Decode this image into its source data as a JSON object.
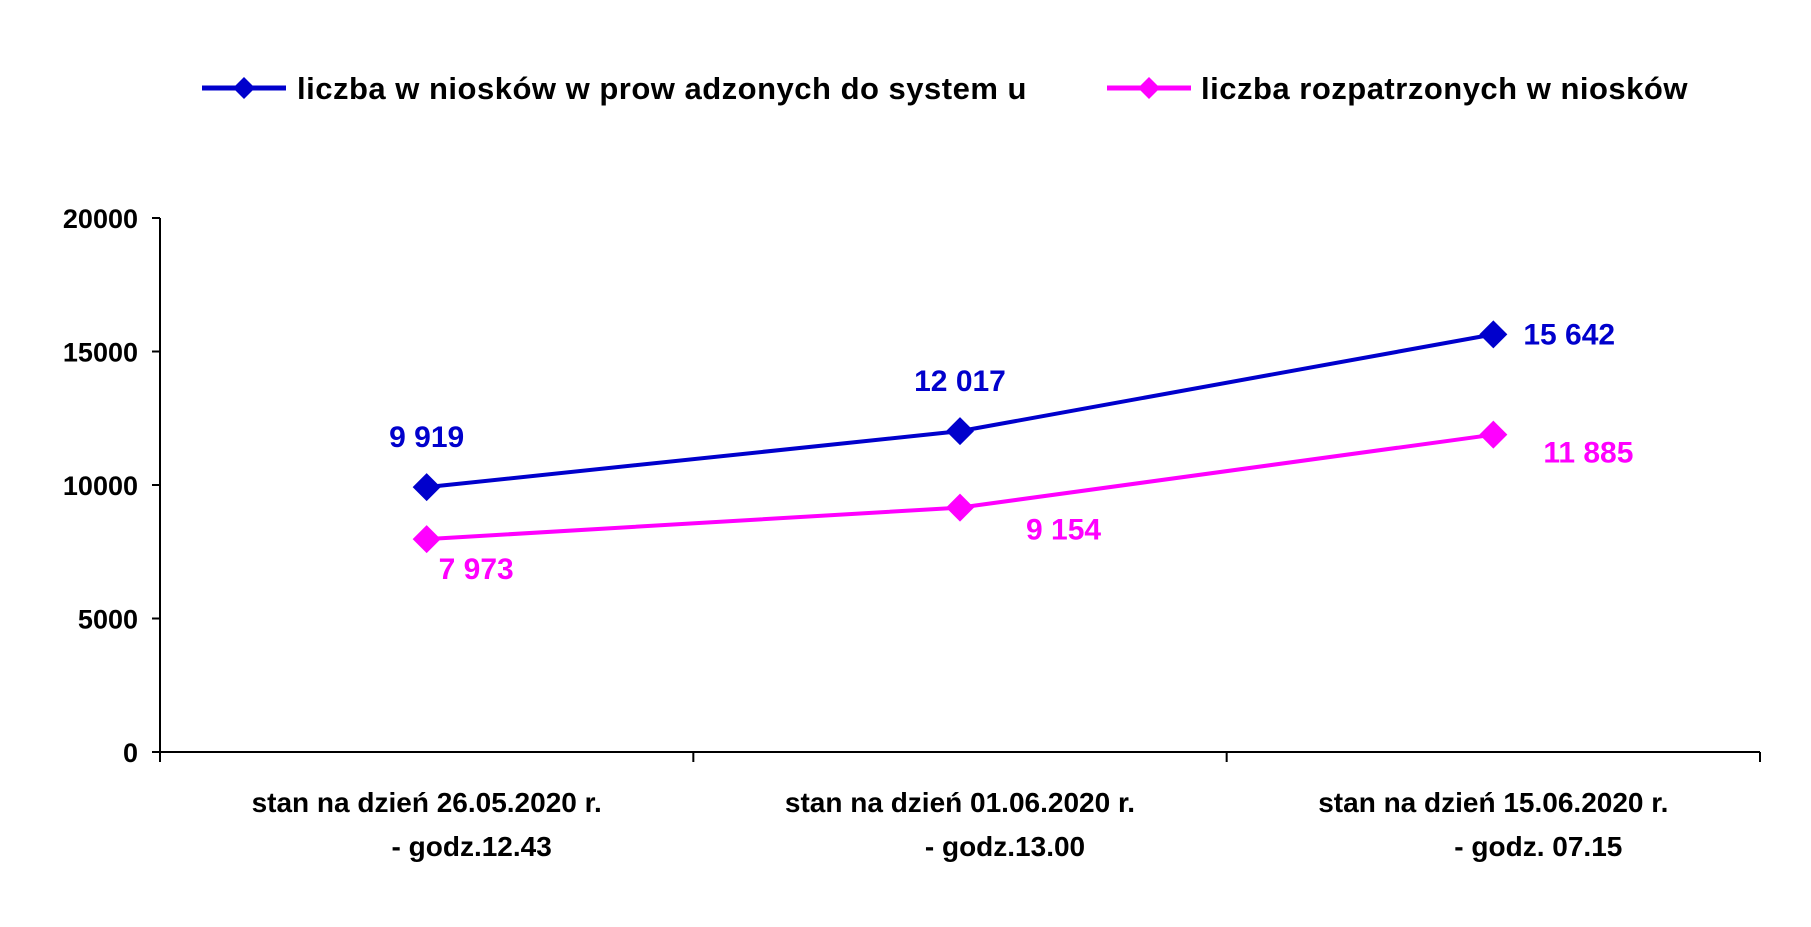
{
  "chart_data": {
    "type": "line",
    "categories": [
      [
        "stan na dzień 26.05.2020 r.",
        "- godz.12.43"
      ],
      [
        "stan na dzień 01.06.2020 r.",
        "- godz.13.00"
      ],
      [
        "stan na dzień 15.06.2020 r.",
        "- godz. 07.15"
      ]
    ],
    "series": [
      {
        "name": "liczba w niosków w prow adzonych do system u",
        "color": "#0000CC",
        "values": [
          9919,
          12017,
          15642
        ],
        "labels": [
          "9 919",
          "12 017",
          "15 642"
        ],
        "label_positions": [
          "above",
          "above",
          "right"
        ]
      },
      {
        "name": "liczba rozpatrzonych w niosków",
        "color": "#FF00FF",
        "values": [
          7973,
          9154,
          11885
        ],
        "labels": [
          "7 973",
          "9 154",
          "11 885"
        ],
        "label_positions": [
          "below-right",
          "below-right",
          "below-right"
        ]
      }
    ],
    "ylim": [
      0,
      20000
    ],
    "yticks": [
      "0",
      "5000",
      "10000",
      "15000",
      "20000"
    ],
    "legend": "top",
    "grid": false,
    "title": "",
    "xlabel": "",
    "ylabel": ""
  }
}
